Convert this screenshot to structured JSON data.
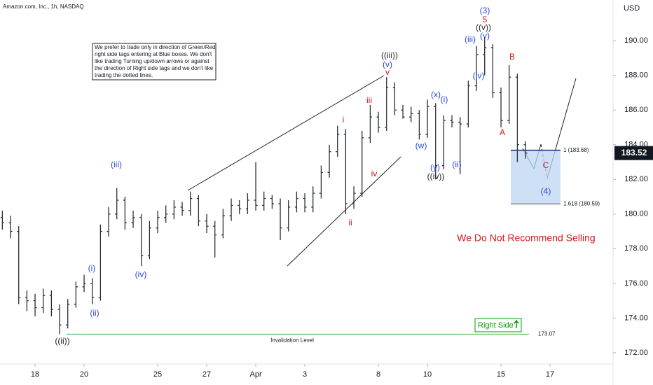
{
  "chart_data": {
    "type": "ohlc",
    "title": "Amazon.com, Inc., 1h, NASDAQ",
    "currency": "USD",
    "color": "#2a2e39",
    "candles": {
      "open": [
        179.8,
        179.5,
        179.0,
        175.2,
        175.0,
        174.6,
        175.3,
        174.5,
        173.6,
        174.8,
        175.8,
        176.0,
        175.2,
        179.0,
        180.0,
        180.8,
        179.5,
        179.8,
        177.6,
        179.2,
        179.8,
        180.0,
        180.4,
        180.2,
        180.9,
        179.6,
        179.3,
        178.8,
        179.9,
        180.5,
        180.3,
        180.8,
        180.5,
        180.9,
        180.6,
        179.2,
        180.4,
        180.9,
        180.4,
        181.2,
        182.4,
        183.6,
        184.6,
        180.6,
        181.2,
        184.4,
        185.6,
        185.0,
        187.3,
        186.0,
        185.6,
        185.8,
        184.6,
        186.2,
        182.8,
        185.4,
        185.3,
        185.2,
        187.4,
        189.2,
        189.6,
        187.0,
        185.4,
        187.9,
        184.0
      ],
      "high": [
        180.2,
        179.9,
        179.3,
        175.6,
        175.4,
        175.7,
        175.6,
        174.8,
        175.1,
        176.1,
        176.5,
        176.3,
        179.4,
        180.4,
        181.5,
        181.0,
        180.2,
        180.0,
        179.6,
        180.2,
        180.5,
        180.8,
        180.7,
        181.3,
        181.1,
        180.0,
        179.6,
        180.3,
        180.9,
        180.8,
        181.2,
        183.0,
        181.3,
        181.1,
        180.9,
        180.8,
        181.3,
        181.2,
        181.6,
        182.8,
        184.0,
        185.1,
        184.9,
        181.6,
        184.8,
        186.3,
        185.9,
        187.9,
        187.6,
        186.3,
        186.2,
        186.0,
        186.6,
        186.4,
        185.7,
        185.7,
        185.6,
        187.7,
        189.7,
        190.2,
        189.8,
        187.3,
        188.6,
        188.1,
        184.2
      ],
      "low": [
        179.1,
        178.6,
        174.8,
        174.4,
        174.1,
        174.3,
        174.1,
        173.07,
        173.4,
        174.6,
        175.5,
        174.8,
        175.0,
        178.7,
        179.7,
        179.1,
        179.2,
        177.0,
        177.4,
        178.9,
        179.5,
        179.7,
        179.9,
        179.9,
        179.3,
        178.9,
        177.5,
        178.6,
        179.6,
        180.0,
        180.0,
        180.2,
        180.2,
        180.3,
        178.5,
        179.0,
        180.1,
        180.1,
        180.1,
        180.9,
        182.1,
        183.3,
        180.0,
        180.3,
        181.0,
        184.1,
        184.7,
        184.8,
        185.7,
        185.5,
        185.3,
        184.3,
        184.4,
        182.0,
        182.6,
        185.0,
        182.3,
        185.0,
        187.1,
        188.0,
        186.7,
        185.0,
        185.2,
        183.0,
        183.2
      ],
      "close": [
        179.5,
        179.0,
        175.2,
        175.0,
        174.6,
        175.3,
        174.5,
        173.6,
        174.8,
        175.8,
        176.0,
        175.2,
        179.0,
        180.0,
        180.8,
        179.5,
        179.8,
        177.6,
        179.2,
        179.8,
        180.0,
        180.4,
        180.2,
        180.9,
        179.6,
        179.3,
        178.8,
        179.9,
        180.5,
        180.3,
        180.8,
        180.5,
        180.9,
        180.6,
        179.2,
        180.4,
        180.9,
        180.4,
        181.2,
        182.4,
        183.6,
        184.6,
        180.6,
        181.2,
        184.4,
        185.6,
        185.0,
        187.3,
        186.0,
        185.6,
        185.8,
        184.6,
        186.2,
        182.8,
        185.4,
        185.3,
        185.2,
        187.4,
        189.2,
        189.6,
        187.0,
        185.4,
        187.9,
        184.0,
        183.52
      ]
    },
    "xlim": [
      -0.29,
      74.71
    ],
    "xticks": [
      {
        "value": 4,
        "label": "18"
      },
      {
        "value": 10,
        "label": "20"
      },
      {
        "value": 19,
        "label": "25"
      },
      {
        "value": 25,
        "label": "27"
      },
      {
        "value": 31,
        "label": "Apr"
      },
      {
        "value": 37,
        "label": "3"
      },
      {
        "value": 46,
        "label": "8"
      },
      {
        "value": 52,
        "label": "10"
      },
      {
        "value": 61,
        "label": "15"
      },
      {
        "value": 67,
        "label": "17"
      }
    ],
    "ylim": [
      171.35,
      192.35
    ],
    "yticks": [
      {
        "value": 172,
        "label": "172.00"
      },
      {
        "value": 174,
        "label": "174.00"
      },
      {
        "value": 176,
        "label": "176.00"
      },
      {
        "value": 178,
        "label": "178.00"
      },
      {
        "value": 180,
        "label": "180.00"
      },
      {
        "value": 182,
        "label": "182.00"
      },
      {
        "value": 184,
        "label": "184.00"
      },
      {
        "value": 186,
        "label": "186.00"
      },
      {
        "value": 188,
        "label": "188.00"
      },
      {
        "value": 190,
        "label": "190.00"
      }
    ],
    "zone": {
      "top": 183.68,
      "top_label": "1 (183.68)",
      "bottom": 180.59,
      "bottom_label": "1.618 (180.59)",
      "color": "#bcd6f2"
    },
    "invalidation": 173.07,
    "invalidation_label": "Invalidation Level",
    "invalidation_color": "#4caf50",
    "warning": "We Do Not Recommend Selling",
    "warning_color": "#d01b1b",
    "right_side": "Right Side",
    "right_side_color": "#00a000",
    "note": [
      "We prefer to trade only in direction of Green/Red",
      "right side tags entering at Blue boxes. We don't",
      "like trading Turning up/down arrows or against",
      "the direction of Right side tags and we don't like",
      "trading the dotted lines."
    ],
    "wave_labels": [
      {
        "text": "(3)",
        "color": "#2a4bd7"
      },
      {
        "text": "5",
        "color": "#d01b1b"
      },
      {
        "text": "((v))",
        "color": "#222222"
      },
      {
        "text": "(v)",
        "color": "#2a4bd7"
      },
      {
        "text": "(iii)",
        "color": "#2a4bd7"
      },
      {
        "text": "(iv)",
        "color": "#2a4bd7"
      },
      {
        "text": "B",
        "color": "#d01b1b"
      },
      {
        "text": "A",
        "color": "#d01b1b"
      },
      {
        "text": "C",
        "color": "#d01b1b"
      },
      {
        "text": "(4)",
        "color": "#2a4bd7"
      },
      {
        "text": "((iii))",
        "color": "#222222"
      },
      {
        "text": "(v)",
        "color": "#2a4bd7"
      },
      {
        "text": "v",
        "color": "#d01b1b"
      },
      {
        "text": "(x)",
        "color": "#2a4bd7"
      },
      {
        "text": "(i)",
        "color": "#2a4bd7"
      },
      {
        "text": "(w)",
        "color": "#2a4bd7"
      },
      {
        "text": "(y)",
        "color": "#2a4bd7"
      },
      {
        "text": "((iv))",
        "color": "#222222"
      },
      {
        "text": "(ii)",
        "color": "#2a4bd7"
      },
      {
        "text": "i",
        "color": "#d01b1b"
      },
      {
        "text": "iii",
        "color": "#d01b1b"
      },
      {
        "text": "iv",
        "color": "#d01b1b"
      },
      {
        "text": "ii",
        "color": "#d01b1b"
      },
      {
        "text": "(iii)",
        "color": "#2a4bd7"
      },
      {
        "text": "(iv)",
        "color": "#2a4bd7"
      },
      {
        "text": "(i)",
        "color": "#2a4bd7"
      },
      {
        "text": "(ii)",
        "color": "#2a4bd7"
      },
      {
        "text": "((ii))",
        "color": "#222222"
      }
    ]
  }
}
